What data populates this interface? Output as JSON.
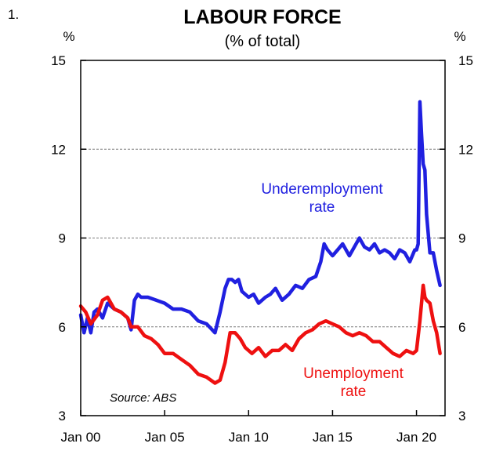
{
  "chart_data": {
    "type": "line",
    "figure_number": "1.",
    "title": "LABOUR FORCE",
    "subtitle": "(% of total)",
    "unit_left": "%",
    "unit_right": "%",
    "source": "Source: ABS",
    "ylim": [
      3,
      15
    ],
    "y_ticks": [
      "15",
      "12",
      "9",
      "6",
      "3"
    ],
    "y_tick_values": [
      15,
      12,
      9,
      6,
      3
    ],
    "x_ticks": [
      "Jan 00",
      "Jan 05",
      "Jan 10",
      "Jan 15",
      "Jan 20"
    ],
    "x_tick_values": [
      2000,
      2005,
      2010,
      2015,
      2020
    ],
    "xlim": [
      2000,
      2021.7
    ],
    "grid": "horizontal-dashed",
    "colors": {
      "underemployment": "#2020e0",
      "unemployment": "#ee1010",
      "grid": "#7a7a7a"
    },
    "series": [
      {
        "name": "Underemployment rate",
        "label_lines": [
          "Underemployment",
          "rate"
        ],
        "color": "#2020e0",
        "x": [
          2000.0,
          2000.2,
          2000.4,
          2000.6,
          2000.8,
          2001.0,
          2001.3,
          2001.6,
          2002.0,
          2002.4,
          2002.8,
          2003.0,
          2003.2,
          2003.4,
          2003.6,
          2004.0,
          2004.5,
          2005.0,
          2005.5,
          2006.0,
          2006.5,
          2007.0,
          2007.5,
          2008.0,
          2008.3,
          2008.6,
          2008.8,
          2009.0,
          2009.2,
          2009.4,
          2009.6,
          2010.0,
          2010.3,
          2010.6,
          2011.0,
          2011.3,
          2011.6,
          2012.0,
          2012.4,
          2012.8,
          2013.2,
          2013.6,
          2014.0,
          2014.3,
          2014.5,
          2014.7,
          2015.0,
          2015.3,
          2015.6,
          2016.0,
          2016.3,
          2016.6,
          2016.9,
          2017.2,
          2017.5,
          2017.8,
          2018.1,
          2018.4,
          2018.7,
          2019.0,
          2019.3,
          2019.6,
          2019.9,
          2020.0,
          2020.1,
          2020.2,
          2020.3,
          2020.4,
          2020.5,
          2020.6,
          2020.8,
          2021.0,
          2021.2,
          2021.4
        ],
        "values": [
          6.4,
          5.8,
          6.3,
          5.8,
          6.5,
          6.6,
          6.3,
          6.8,
          6.6,
          6.5,
          6.3,
          5.9,
          6.9,
          7.1,
          7.0,
          7.0,
          6.9,
          6.8,
          6.6,
          6.6,
          6.5,
          6.2,
          6.1,
          5.8,
          6.5,
          7.3,
          7.6,
          7.6,
          7.5,
          7.6,
          7.2,
          7.0,
          7.1,
          6.8,
          7.0,
          7.1,
          7.3,
          6.9,
          7.1,
          7.4,
          7.3,
          7.6,
          7.7,
          8.2,
          8.8,
          8.6,
          8.4,
          8.6,
          8.8,
          8.4,
          8.7,
          9.0,
          8.7,
          8.6,
          8.8,
          8.5,
          8.6,
          8.5,
          8.3,
          8.6,
          8.5,
          8.2,
          8.6,
          8.6,
          8.8,
          13.6,
          12.5,
          11.5,
          11.3,
          9.8,
          8.5,
          8.5,
          7.9,
          7.4
        ]
      },
      {
        "name": "Unemployment rate",
        "label_lines": [
          "Unemployment",
          "rate"
        ],
        "color": "#ee1010",
        "x": [
          2000.0,
          2000.3,
          2000.6,
          2001.0,
          2001.3,
          2001.6,
          2002.0,
          2002.4,
          2002.8,
          2003.0,
          2003.4,
          2003.8,
          2004.2,
          2004.6,
          2005.0,
          2005.5,
          2006.0,
          2006.5,
          2007.0,
          2007.5,
          2008.0,
          2008.3,
          2008.6,
          2008.9,
          2009.2,
          2009.5,
          2009.8,
          2010.2,
          2010.6,
          2011.0,
          2011.4,
          2011.8,
          2012.2,
          2012.6,
          2013.0,
          2013.4,
          2013.8,
          2014.2,
          2014.6,
          2015.0,
          2015.4,
          2015.8,
          2016.2,
          2016.6,
          2017.0,
          2017.4,
          2017.8,
          2018.2,
          2018.6,
          2019.0,
          2019.4,
          2019.8,
          2020.0,
          2020.2,
          2020.4,
          2020.5,
          2020.6,
          2020.8,
          2021.0,
          2021.2,
          2021.4
        ],
        "values": [
          6.7,
          6.5,
          6.1,
          6.4,
          6.9,
          7.0,
          6.6,
          6.5,
          6.3,
          6.0,
          6.0,
          5.7,
          5.6,
          5.4,
          5.1,
          5.1,
          4.9,
          4.7,
          4.4,
          4.3,
          4.1,
          4.2,
          4.8,
          5.8,
          5.8,
          5.6,
          5.3,
          5.1,
          5.3,
          5.0,
          5.2,
          5.2,
          5.4,
          5.2,
          5.6,
          5.8,
          5.9,
          6.1,
          6.2,
          6.1,
          6.0,
          5.8,
          5.7,
          5.8,
          5.7,
          5.5,
          5.5,
          5.3,
          5.1,
          5.0,
          5.2,
          5.1,
          5.2,
          6.2,
          7.4,
          7.0,
          6.9,
          6.8,
          6.2,
          5.8,
          5.1
        ]
      }
    ]
  }
}
